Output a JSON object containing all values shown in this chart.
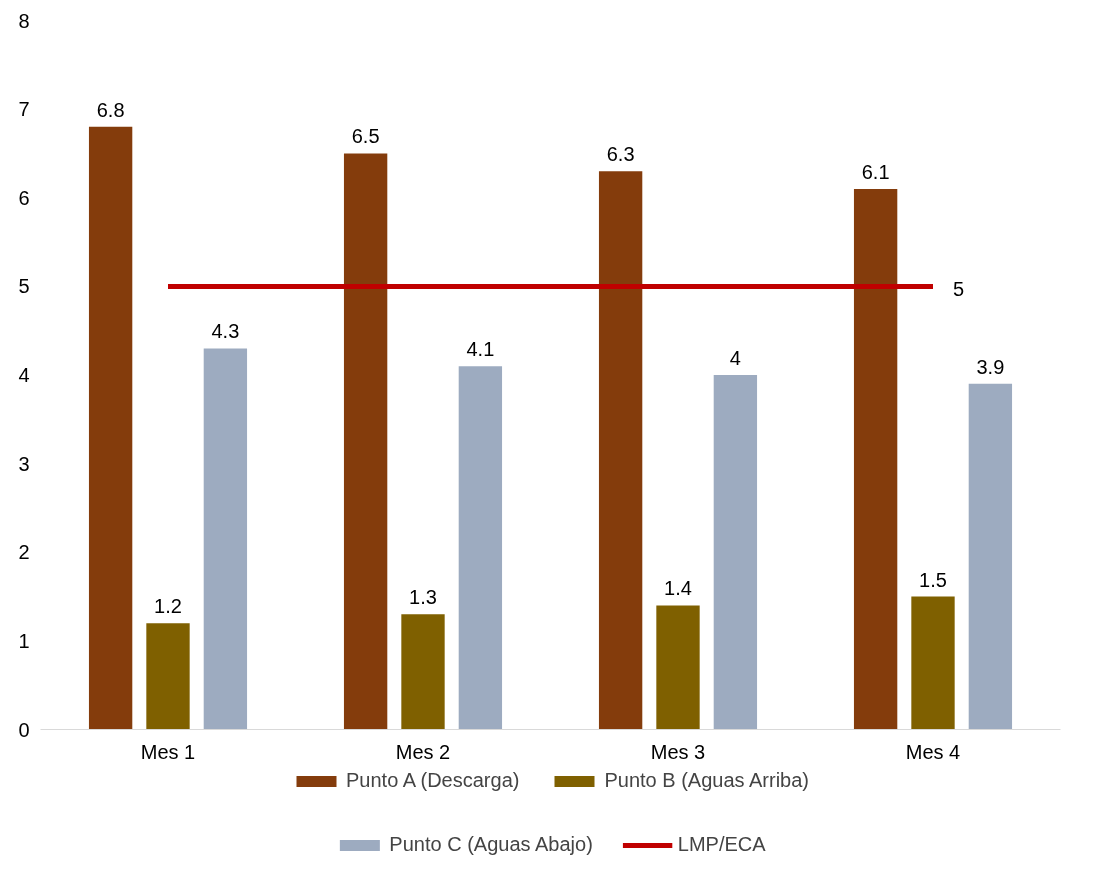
{
  "chart_data": {
    "type": "bar",
    "categories": [
      "Mes 1",
      "Mes 2",
      "Mes 3",
      "Mes 4"
    ],
    "series": [
      {
        "name": "Punto A (Descarga)",
        "color": "#843c0c",
        "values": [
          6.8,
          6.5,
          6.3,
          6.1
        ],
        "value_labels": [
          "6.8",
          "6.5",
          "6.3",
          "6.1"
        ]
      },
      {
        "name": "Punto B (Aguas Arriba)",
        "color": "#7f6000",
        "values": [
          1.2,
          1.3,
          1.4,
          1.5
        ],
        "value_labels": [
          "1.2",
          "1.3",
          "1.4",
          "1.5"
        ]
      },
      {
        "name": "Punto C (Aguas Abajo)",
        "color": "#9dabc0",
        "values": [
          4.3,
          4.1,
          4.0,
          3.9
        ],
        "value_labels": [
          "4.3",
          "4.1",
          "4",
          "3.9"
        ]
      },
      {
        "name": "LMP/ECA",
        "type": "line",
        "color": "#c00000",
        "values": [
          5,
          5,
          5,
          5
        ],
        "value_labels": [
          null,
          null,
          null,
          "5"
        ]
      }
    ],
    "ylim": [
      0,
      8
    ],
    "yticks": [
      0,
      1,
      2,
      3,
      4,
      5,
      6,
      7,
      8
    ],
    "grid": false,
    "legend": "bottom"
  }
}
